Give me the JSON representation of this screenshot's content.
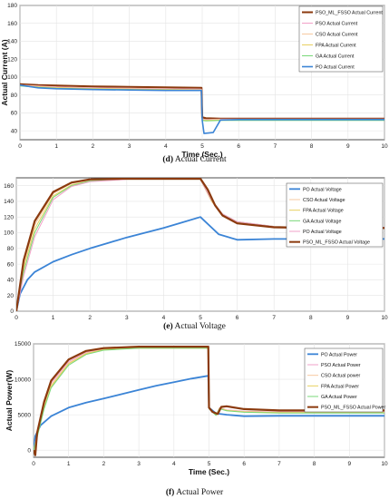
{
  "captions": [
    {
      "letter": "(d)",
      "text": "Actual Current"
    },
    {
      "letter": "(e)",
      "text": "Actual Voltage"
    },
    {
      "letter": "(f)",
      "text": "Actual Power"
    }
  ],
  "chart_data": [
    {
      "type": "line",
      "xlabel": "Time (Sec.)",
      "ylabel": "Actual Current (A)",
      "xlim": [
        0,
        10
      ],
      "ylim": [
        30,
        180
      ],
      "xticks": [
        0,
        1,
        2,
        3,
        4,
        5,
        6,
        7,
        8,
        9,
        10
      ],
      "yticks": [
        40,
        60,
        80,
        100,
        120,
        140,
        160,
        180
      ],
      "grid": true,
      "legend_position": "top-right",
      "legend": [
        "PSO_ML_FSSO Actual Current",
        "PSO Actual Current",
        "CSO Actual Current",
        "FPA Actual Current",
        "GA Actual Current",
        "PO Actual Current"
      ],
      "series": [
        {
          "name": "PSO_ML_FSSO Actual Current",
          "color": "#8b3a0e",
          "width": 2.2,
          "x": [
            0,
            0.5,
            1,
            2,
            3,
            4,
            4.98,
            5.0,
            5.1,
            5.5,
            6,
            7,
            8,
            9,
            10
          ],
          "y": [
            92,
            91,
            90.5,
            89.5,
            89,
            88.5,
            88,
            55,
            54,
            53.5,
            53.5,
            53.5,
            53.5,
            53.5,
            53.5
          ]
        },
        {
          "name": "PSO Actual Current",
          "color": "#f2a0c8",
          "width": 1,
          "x": [
            0,
            0.5,
            1,
            2,
            3,
            4,
            4.98,
            5.0,
            5.1,
            5.5,
            6,
            7,
            8,
            9,
            10
          ],
          "y": [
            91,
            90,
            89,
            88,
            87.5,
            87,
            86.5,
            53,
            52.5,
            53,
            53,
            53,
            53,
            53,
            53
          ]
        },
        {
          "name": "CSO Actual Current",
          "color": "#f7c9a0",
          "width": 1,
          "x": [
            0,
            0.5,
            1,
            2,
            3,
            4,
            4.98,
            5.0,
            5.1,
            5.5,
            6,
            7,
            8,
            9,
            10
          ],
          "y": [
            91,
            89.5,
            88.5,
            87.5,
            87,
            86.5,
            86,
            52.5,
            52,
            52.5,
            52.5,
            52.5,
            52.5,
            52.5,
            52.5
          ]
        },
        {
          "name": "FPA Actual Current",
          "color": "#e8d060",
          "width": 1,
          "x": [
            0,
            0.5,
            1,
            2,
            3,
            4,
            4.98,
            5.0,
            5.1,
            5.5,
            6,
            7,
            8,
            9,
            10
          ],
          "y": [
            90.5,
            89,
            88,
            87,
            86.5,
            86,
            85.5,
            52,
            51.5,
            52,
            52,
            52,
            52,
            52,
            52
          ]
        },
        {
          "name": "GA Actual Current",
          "color": "#78d878",
          "width": 1,
          "x": [
            0,
            0.5,
            1,
            2,
            3,
            4,
            4.98,
            5.0,
            5.1,
            5.5,
            6,
            7,
            8,
            9,
            10
          ],
          "y": [
            90,
            88.5,
            87.5,
            86.5,
            86,
            85.5,
            85,
            51.5,
            51,
            51.5,
            51.5,
            51.5,
            51.5,
            51.5,
            51.5
          ]
        },
        {
          "name": "PO Actual Current",
          "color": "#3b84d6",
          "width": 1.6,
          "x": [
            0,
            0.5,
            1,
            2,
            3,
            4,
            4.98,
            5.0,
            5.05,
            5.3,
            5.5,
            6,
            7,
            8,
            9,
            10
          ],
          "y": [
            91,
            88,
            87,
            86,
            85.5,
            85,
            85,
            52,
            37,
            38,
            52,
            52.5,
            52.5,
            52.5,
            52.5,
            52.5
          ]
        }
      ]
    },
    {
      "type": "line",
      "xlabel": "",
      "ylabel": "",
      "xlim": [
        0,
        10
      ],
      "ylim": [
        0,
        170
      ],
      "xticks": [
        0,
        1,
        2,
        3,
        4,
        5,
        6,
        7,
        8,
        9,
        10
      ],
      "yticks": [
        0,
        20,
        40,
        60,
        80,
        100,
        120,
        140,
        160
      ],
      "grid": true,
      "legend_position": "top-right",
      "legend": [
        "PO Actual Voltage",
        "CSO Actual Voltage",
        "FPA Actual Voltage",
        "GA Actual Voltage",
        "PO Actual Voltage",
        "PSO_ML_FSSO Actual Voltage"
      ],
      "series": [
        {
          "name": "PO Actual Voltage",
          "color": "#3b84d6",
          "width": 1.8,
          "x": [
            0,
            0.1,
            0.3,
            0.5,
            1,
            1.5,
            2,
            2.5,
            3,
            3.5,
            4,
            4.5,
            5,
            5.5,
            6,
            7,
            8,
            9,
            10
          ],
          "y": [
            0,
            22,
            40,
            50,
            63,
            72,
            80,
            87,
            94,
            100,
            106,
            113,
            120,
            98,
            91,
            92,
            92,
            92,
            92
          ]
        },
        {
          "name": "CSO Actual Voltage",
          "color": "#f7c9a0",
          "width": 1,
          "x": [
            0,
            0.2,
            0.5,
            1,
            1.5,
            2,
            3,
            4,
            5,
            5.3,
            5.6,
            6,
            7,
            8,
            9,
            10
          ],
          "y": [
            0,
            60,
            110,
            150,
            163,
            167,
            168,
            168,
            168,
            140,
            122,
            112,
            107,
            106,
            106,
            106
          ]
        },
        {
          "name": "FPA Actual Voltage",
          "color": "#e8d060",
          "width": 1,
          "x": [
            0,
            0.2,
            0.5,
            1,
            1.5,
            2,
            3,
            4,
            5,
            5.3,
            5.6,
            6,
            7,
            8,
            9,
            10
          ],
          "y": [
            0,
            55,
            105,
            147,
            161,
            166,
            168,
            168,
            168,
            141,
            123,
            113,
            108,
            107,
            107,
            107
          ]
        },
        {
          "name": "GA Actual Voltage",
          "color": "#78d878",
          "width": 1,
          "x": [
            0,
            0.2,
            0.5,
            1,
            1.5,
            2,
            3,
            4,
            5,
            5.3,
            5.6,
            6,
            7,
            8,
            9,
            10
          ],
          "y": [
            0,
            50,
            100,
            145,
            160,
            166,
            168,
            168,
            168,
            142,
            124,
            114,
            108,
            107,
            107,
            107
          ]
        },
        {
          "name": "PO Actual Voltage",
          "color": "#f2a0c8",
          "width": 1,
          "x": [
            0,
            0.2,
            0.5,
            1,
            1.5,
            2,
            3,
            4,
            5,
            5.3,
            5.6,
            6,
            7,
            8,
            9,
            10
          ],
          "y": [
            0,
            45,
            95,
            142,
            159,
            165,
            168,
            168,
            168,
            142,
            124,
            114,
            108,
            107,
            107,
            107
          ]
        },
        {
          "name": "PSO_ML_FSSO Actual Voltage",
          "color": "#8b3a0e",
          "width": 2.2,
          "x": [
            0,
            0.2,
            0.5,
            1,
            1.5,
            2,
            3,
            4,
            5,
            5.2,
            5.4,
            5.6,
            6,
            7,
            8,
            9,
            10
          ],
          "y": [
            0,
            65,
            115,
            152,
            164,
            168,
            169,
            169,
            169,
            155,
            135,
            122,
            112,
            107,
            106,
            106,
            106
          ]
        }
      ]
    },
    {
      "type": "line",
      "xlabel": "Time (Sec.)",
      "ylabel": "Actual Power(W)",
      "xlim": [
        0,
        10
      ],
      "ylim": [
        -1000,
        15000
      ],
      "xticks": [
        0,
        1,
        2,
        3,
        4,
        5,
        6,
        7,
        8,
        9,
        10
      ],
      "yticks": [
        0,
        5000,
        10000,
        15000
      ],
      "grid": true,
      "legend_position": "top-right",
      "legend": [
        "PO Actual Power",
        "PSO Actual Power",
        "CSO Actual power",
        "FPA Actual Power",
        "GA Actual Power",
        "PSO_ML_FSSO Actual Power"
      ],
      "series": [
        {
          "name": "PO Actual Power",
          "color": "#3b84d6",
          "width": 1.8,
          "x": [
            0,
            0.05,
            0.2,
            0.5,
            1,
            1.5,
            2,
            2.5,
            3,
            3.5,
            4,
            4.5,
            4.98,
            5.0,
            5.2,
            5.5,
            6,
            7,
            8,
            9,
            10
          ],
          "y": [
            0,
            2000,
            3500,
            4800,
            6000,
            6700,
            7300,
            7900,
            8500,
            9100,
            9600,
            10100,
            10500,
            6000,
            5200,
            5000,
            4800,
            4850,
            4850,
            4850,
            4850
          ]
        },
        {
          "name": "PSO Actual Power",
          "color": "#f2a0c8",
          "width": 1,
          "x": [
            0,
            0.1,
            0.3,
            0.5,
            1,
            1.5,
            2,
            3,
            4,
            4.98,
            5.0,
            5.2,
            5.3,
            5.5,
            6,
            7,
            8,
            9,
            10
          ],
          "y": [
            0,
            2200,
            6500,
            9500,
            12500,
            13800,
            14300,
            14500,
            14500,
            14500,
            6000,
            5000,
            6000,
            5700,
            5500,
            5400,
            5400,
            5400,
            5400
          ]
        },
        {
          "name": "CSO Actual power",
          "color": "#f7c9a0",
          "width": 1,
          "x": [
            0,
            0.1,
            0.3,
            0.5,
            1,
            1.5,
            2,
            3,
            4,
            4.98,
            5.0,
            5.2,
            5.3,
            5.5,
            6,
            7,
            8,
            9,
            10
          ],
          "y": [
            0,
            2000,
            6200,
            9200,
            12300,
            13700,
            14200,
            14400,
            14400,
            14400,
            5900,
            4950,
            5950,
            5650,
            5450,
            5350,
            5350,
            5350,
            5350
          ]
        },
        {
          "name": "FPA Actual Power",
          "color": "#e8d060",
          "width": 1,
          "x": [
            0,
            0.1,
            0.3,
            0.5,
            1,
            1.5,
            2,
            3,
            4,
            4.98,
            5.0,
            5.2,
            5.3,
            5.5,
            6,
            7,
            8,
            9,
            10
          ],
          "y": [
            0,
            1900,
            6000,
            9000,
            12200,
            13600,
            14200,
            14400,
            14400,
            14400,
            5900,
            4950,
            5900,
            5600,
            5400,
            5300,
            5300,
            5300,
            5300
          ]
        },
        {
          "name": "GA Actual Power",
          "color": "#78d878",
          "width": 1,
          "x": [
            0,
            0.1,
            0.3,
            0.5,
            1,
            1.5,
            2,
            3,
            4,
            4.98,
            5.0,
            5.2,
            5.3,
            5.5,
            6,
            7,
            8,
            9,
            10
          ],
          "y": [
            0,
            1800,
            5800,
            8800,
            12000,
            13500,
            14100,
            14400,
            14400,
            14400,
            5850,
            4900,
            5850,
            5550,
            5350,
            5250,
            5250,
            5250,
            5250
          ]
        },
        {
          "name": "PSO_ML_FSSO Actual Power",
          "color": "#8b3a0e",
          "width": 2.2,
          "x": [
            0,
            0.05,
            0.1,
            0.3,
            0.5,
            1,
            1.5,
            2,
            3,
            4,
            4.98,
            5.0,
            5.1,
            5.25,
            5.35,
            5.5,
            6,
            7,
            8,
            9,
            10
          ],
          "y": [
            0,
            -700,
            2400,
            6800,
            9800,
            12800,
            14000,
            14400,
            14600,
            14600,
            14600,
            6000,
            5400,
            5100,
            6100,
            6200,
            5800,
            5600,
            5600,
            5600,
            5600
          ]
        }
      ]
    }
  ]
}
